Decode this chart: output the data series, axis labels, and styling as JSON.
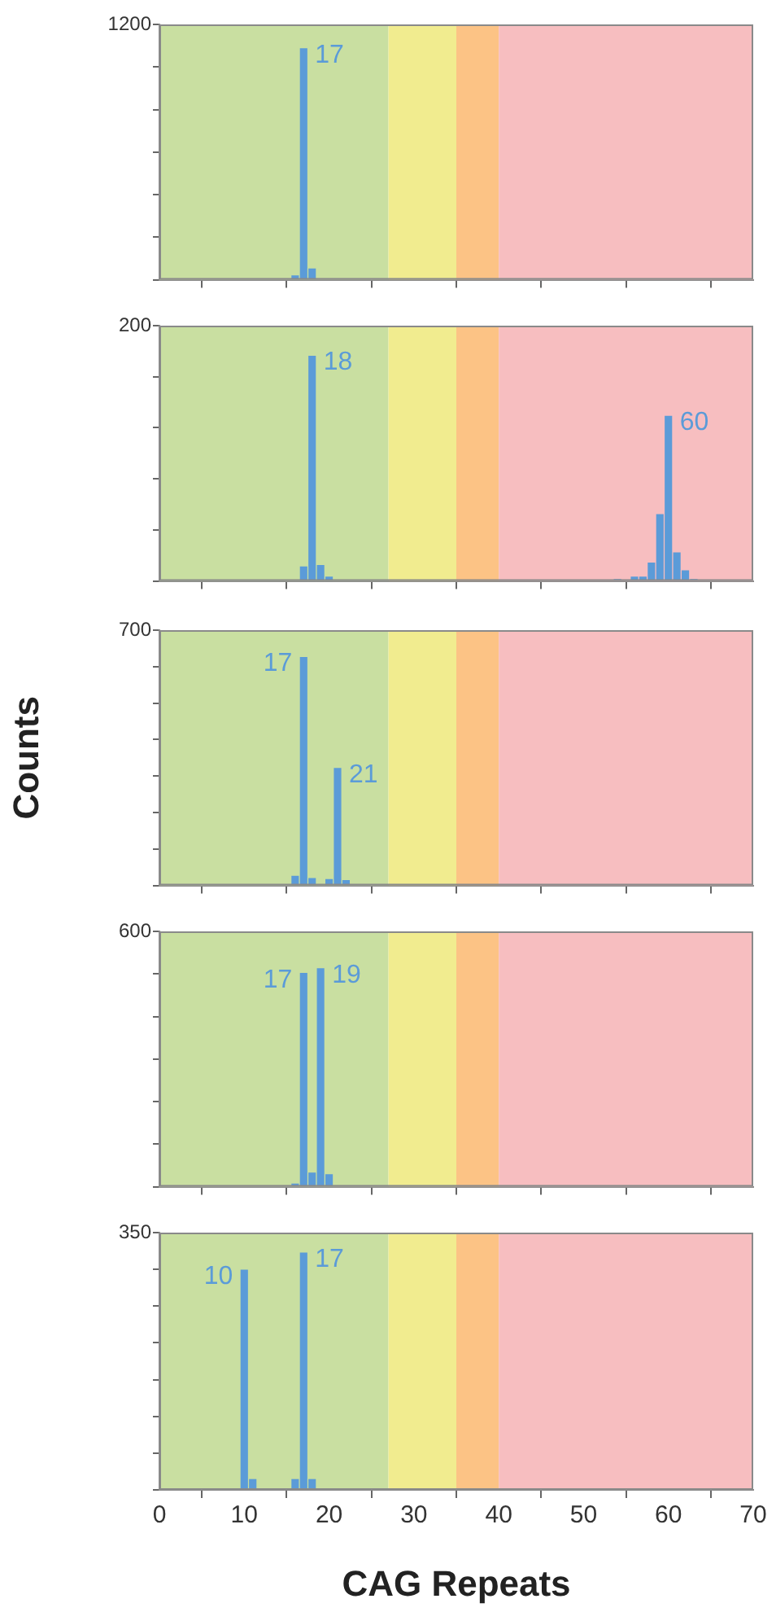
{
  "chart_data": [
    {
      "type": "bar",
      "x": [
        16,
        17,
        18
      ],
      "values": [
        18,
        1086,
        50
      ],
      "color": "#5b9bd8",
      "bands": [
        {
          "axis": "x",
          "from": 0,
          "to": 27,
          "color": "#c9dfa1"
        },
        {
          "axis": "x",
          "from": 27,
          "to": 35,
          "color": "#f1ec8f"
        },
        {
          "axis": "x",
          "from": 35,
          "to": 40,
          "color": "#fcc385"
        },
        {
          "axis": "x",
          "from": 40,
          "to": 70,
          "color": "#f7bec0"
        }
      ],
      "annotations": [
        {
          "text": "17",
          "x": 17,
          "y": 1086
        }
      ],
      "xlim": [
        0,
        70
      ],
      "xticks": [
        0,
        10,
        20,
        30,
        40,
        50,
        60,
        70
      ],
      "ylim": [
        0,
        1200
      ],
      "yticks": [
        {
          "value": 0,
          "label": null
        },
        {
          "value": 200,
          "label": null
        },
        {
          "value": 400,
          "label": null
        },
        {
          "value": 600,
          "label": null
        },
        {
          "value": 800,
          "label": null
        },
        {
          "value": 1000,
          "label": null
        },
        1200
      ],
      "tick_labels": "y",
      "grid": false,
      "legend": false
    },
    {
      "type": "bar",
      "x": [
        17,
        18,
        19,
        20,
        54,
        56,
        57,
        58,
        59,
        60,
        61,
        62,
        63
      ],
      "values": [
        11,
        176,
        12,
        3,
        1,
        3,
        3,
        14,
        52,
        129,
        22,
        8,
        1
      ],
      "color": "#5b9bd8",
      "bands": [
        {
          "axis": "x",
          "from": 0,
          "to": 27,
          "color": "#c9dfa1"
        },
        {
          "axis": "x",
          "from": 27,
          "to": 35,
          "color": "#f1ec8f"
        },
        {
          "axis": "x",
          "from": 35,
          "to": 40,
          "color": "#fcc385"
        },
        {
          "axis": "x",
          "from": 40,
          "to": 70,
          "color": "#f7bec0"
        }
      ],
      "annotations": [
        {
          "text": "18",
          "x": 18,
          "y": 176
        },
        {
          "text": "60",
          "x": 60,
          "y": 129
        }
      ],
      "xlim": [
        0,
        70
      ],
      "xticks": [
        0,
        10,
        20,
        30,
        40,
        50,
        60,
        70
      ],
      "ylim": [
        0,
        200
      ],
      "yticks": [
        {
          "value": 0,
          "label": null
        },
        {
          "value": 40,
          "label": null
        },
        {
          "value": 80,
          "label": null
        },
        {
          "value": 120,
          "label": null
        },
        {
          "value": 160,
          "label": null
        },
        200
      ],
      "tick_labels": "y",
      "grid": false,
      "legend": false
    },
    {
      "type": "bar",
      "x": [
        16,
        17,
        18,
        20,
        21,
        22
      ],
      "values": [
        25,
        625,
        19,
        16,
        321,
        13
      ],
      "color": "#5b9bd8",
      "ylabel": "Counts",
      "bands": [
        {
          "axis": "x",
          "from": 0,
          "to": 27,
          "color": "#c9dfa1"
        },
        {
          "axis": "x",
          "from": 27,
          "to": 35,
          "color": "#f1ec8f"
        },
        {
          "axis": "x",
          "from": 35,
          "to": 40,
          "color": "#fcc385"
        },
        {
          "axis": "x",
          "from": 40,
          "to": 70,
          "color": "#f7bec0"
        }
      ],
      "annotations": [
        {
          "text": "17",
          "x": 17,
          "y": 625
        },
        {
          "text": "21",
          "x": 21,
          "y": 321
        }
      ],
      "xlim": [
        0,
        70
      ],
      "xticks": [
        0,
        10,
        20,
        30,
        40,
        50,
        60,
        70
      ],
      "ylim": [
        0,
        700
      ],
      "yticks": [
        {
          "value": 0,
          "label": null
        },
        {
          "value": 100,
          "label": null
        },
        {
          "value": 200,
          "label": null
        },
        {
          "value": 300,
          "label": null
        },
        {
          "value": 400,
          "label": null
        },
        {
          "value": 500,
          "label": null
        },
        {
          "value": 600,
          "label": null
        },
        700
      ],
      "tick_labels": "y",
      "grid": false,
      "legend": false
    },
    {
      "type": "bar",
      "x": [
        16,
        17,
        18,
        19,
        20
      ],
      "values": [
        6,
        501,
        32,
        512,
        28
      ],
      "color": "#5b9bd8",
      "bands": [
        {
          "axis": "x",
          "from": 0,
          "to": 27,
          "color": "#c9dfa1"
        },
        {
          "axis": "x",
          "from": 27,
          "to": 35,
          "color": "#f1ec8f"
        },
        {
          "axis": "x",
          "from": 35,
          "to": 40,
          "color": "#fcc385"
        },
        {
          "axis": "x",
          "from": 40,
          "to": 70,
          "color": "#f7bec0"
        }
      ],
      "annotations": [
        {
          "text": "17",
          "x": 17,
          "y": 501
        },
        {
          "text": "19",
          "x": 19,
          "y": 512
        }
      ],
      "xlim": [
        0,
        70
      ],
      "xticks": [
        0,
        10,
        20,
        30,
        40,
        50,
        60,
        70
      ],
      "ylim": [
        0,
        600
      ],
      "yticks": [
        {
          "value": 0,
          "label": null
        },
        {
          "value": 100,
          "label": null
        },
        {
          "value": 200,
          "label": null
        },
        {
          "value": 300,
          "label": null
        },
        {
          "value": 400,
          "label": null
        },
        {
          "value": 500,
          "label": null
        },
        600
      ],
      "tick_labels": "y",
      "grid": false,
      "legend": false
    },
    {
      "type": "bar",
      "x": [
        10,
        11,
        16,
        17,
        18
      ],
      "values": [
        299,
        14,
        14,
        322,
        14
      ],
      "color": "#5b9bd8",
      "xlabel": "CAG Repeats",
      "bands": [
        {
          "axis": "x",
          "from": 0,
          "to": 27,
          "color": "#c9dfa1"
        },
        {
          "axis": "x",
          "from": 27,
          "to": 35,
          "color": "#f1ec8f"
        },
        {
          "axis": "x",
          "from": 35,
          "to": 40,
          "color": "#fcc385"
        },
        {
          "axis": "x",
          "from": 40,
          "to": 70,
          "color": "#f7bec0"
        }
      ],
      "annotations": [
        {
          "text": "10",
          "x": 10,
          "y": 299
        },
        {
          "text": "17",
          "x": 17,
          "y": 322
        }
      ],
      "xlim": [
        0,
        70
      ],
      "xticks": [
        0,
        10,
        20,
        30,
        40,
        50,
        60,
        70
      ],
      "ylim": [
        0,
        350
      ],
      "yticks": [
        {
          "value": 0,
          "label": null
        },
        {
          "value": 50,
          "label": null
        },
        {
          "value": 100,
          "label": null
        },
        {
          "value": 150,
          "label": null
        },
        {
          "value": 200,
          "label": null
        },
        {
          "value": 250,
          "label": null
        },
        {
          "value": 300,
          "label": null
        },
        350
      ],
      "grid": false,
      "legend": false
    }
  ]
}
